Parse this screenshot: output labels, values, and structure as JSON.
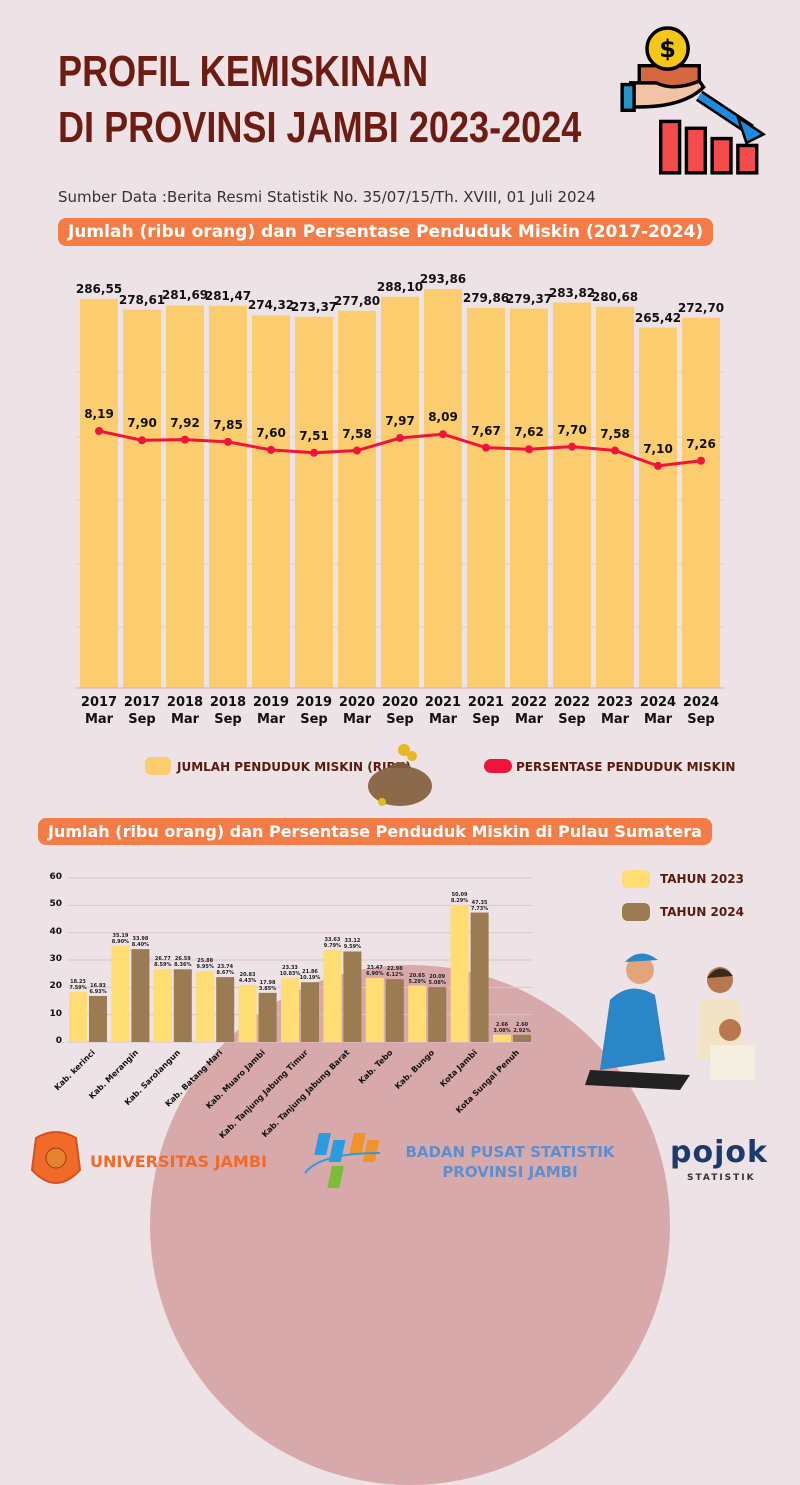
{
  "title_line1": "PROFIL KEMISKINAN",
  "title_line2": "DI PROVINSI JAMBI 2023-2024",
  "source": "Sumber Data :Berita Resmi Statistik No. 35/07/15/Th. XVIII, 01 Juli 2024",
  "chart_data": [
    {
      "type": "bar",
      "title": "Jumlah (ribu orang) dan Persentase Penduduk Miskin (2017-2024)",
      "categories": [
        [
          "2017",
          "Mar"
        ],
        [
          "2017",
          "Sep"
        ],
        [
          "2018",
          "Mar"
        ],
        [
          "2018",
          "Sep"
        ],
        [
          "2019",
          "Mar"
        ],
        [
          "2019",
          "Sep"
        ],
        [
          "2020",
          "Mar"
        ],
        [
          "2020",
          "Sep"
        ],
        [
          "2021",
          "Mar"
        ],
        [
          "2021",
          "Sep"
        ],
        [
          "2022",
          "Mar"
        ],
        [
          "2022",
          "Sep"
        ],
        [
          "2023",
          "Mar"
        ],
        [
          "2024",
          "Mar"
        ],
        [
          "2024",
          "Sep"
        ]
      ],
      "series": [
        {
          "name": "JUMLAH PENDUDUK MISKIN (RIBU)",
          "type": "bar",
          "color": "#fccd6e",
          "values": [
            286.55,
            278.61,
            281.69,
            281.47,
            274.32,
            273.37,
            277.8,
            288.1,
            293.86,
            279.86,
            279.37,
            283.82,
            280.68,
            265.42,
            272.7
          ],
          "labels": [
            "286,55",
            "278,61",
            "281,69",
            "281,47",
            "274,32",
            "273,37",
            "277,80",
            "288,10",
            "293,86",
            "279,86",
            "279,37",
            "283,82",
            "280,68",
            "265,42",
            "272,70"
          ]
        },
        {
          "name": "PERSENTASE PENDUDUK MISKIN",
          "type": "line",
          "color": "#f0143c",
          "values": [
            8.19,
            7.9,
            7.92,
            7.85,
            7.6,
            7.51,
            7.58,
            7.97,
            8.09,
            7.67,
            7.62,
            7.7,
            7.58,
            7.1,
            7.26
          ],
          "labels": [
            "8,19",
            "7,90",
            "7,92",
            "7,85",
            "7,60",
            "7,51",
            "7,58",
            "7,97",
            "8,09",
            "7,67",
            "7,62",
            "7,70",
            "7,58",
            "7,10",
            "7,26"
          ]
        }
      ],
      "grid": true
    },
    {
      "type": "bar",
      "title": "Jumlah (ribu orang) dan Persentase Penduduk Miskin di Pulau Sumatera",
      "categories": [
        "Kab. kerinci",
        "Kab. Merangin",
        "Kab. Sarolangun",
        "Kab. Batang Hari",
        "Kab. Muaro Jambi",
        "Kab. Tanjung Jabung Timur",
        "Kab. Tanjung Jabung Barat",
        "Kab. Tebo",
        "Kab. Bungo",
        "Kota Jambi",
        "Kota Sungai Penuh"
      ],
      "yticks": [
        0,
        10,
        20,
        30,
        40,
        50,
        60
      ],
      "ylim": [
        0,
        60
      ],
      "grid": true,
      "legend": "top-right",
      "series": [
        {
          "name": "TAHUN 2023",
          "color": "#ffdd73",
          "values": [
            18.23,
            35.19,
            26.77,
            25.88,
            20.83,
            23.33,
            33.63,
            23.47,
            20.65,
            50.09,
            2.66
          ],
          "labels": [
            "18.23",
            "35.19",
            "26.77",
            "25.88",
            "20.83",
            "23.33",
            "33.63",
            "23.47",
            "20.65",
            "50.09",
            "2.66"
          ],
          "percent": [
            "7.59%",
            "8.90%",
            "8.59%",
            "9.95%",
            "4.43%",
            "10.83%",
            "9.79%",
            "6.90%",
            "5.29%",
            "8.29%",
            "3.08%"
          ]
        },
        {
          "name": "TAHUN 2024",
          "color": "#9b7b52",
          "values": [
            16.83,
            33.98,
            26.59,
            23.74,
            17.98,
            21.86,
            33.12,
            22.98,
            20.09,
            47.35,
            2.6
          ],
          "labels": [
            "16.83",
            "33.98",
            "26.59",
            "23.74",
            "17.98",
            "21.86",
            "33.12",
            "22.98",
            "20.09",
            "47.35",
            "2.60"
          ],
          "percent": [
            "6.93%",
            "8.40%",
            "8.36%",
            "8.67%",
            "3.85%",
            "10.19%",
            "9.59%",
            "6.12%",
            "5.08%",
            "7.73%",
            "2.92%"
          ]
        }
      ]
    }
  ],
  "footer": {
    "unja": "UNIVERSITAS JAMBI",
    "bps_line1": "BADAN PUSAT STATISTIK",
    "bps_line2": "PROVINSI JAMBI",
    "pojok": "pojok",
    "pojok_sub": "STATISTIK"
  }
}
